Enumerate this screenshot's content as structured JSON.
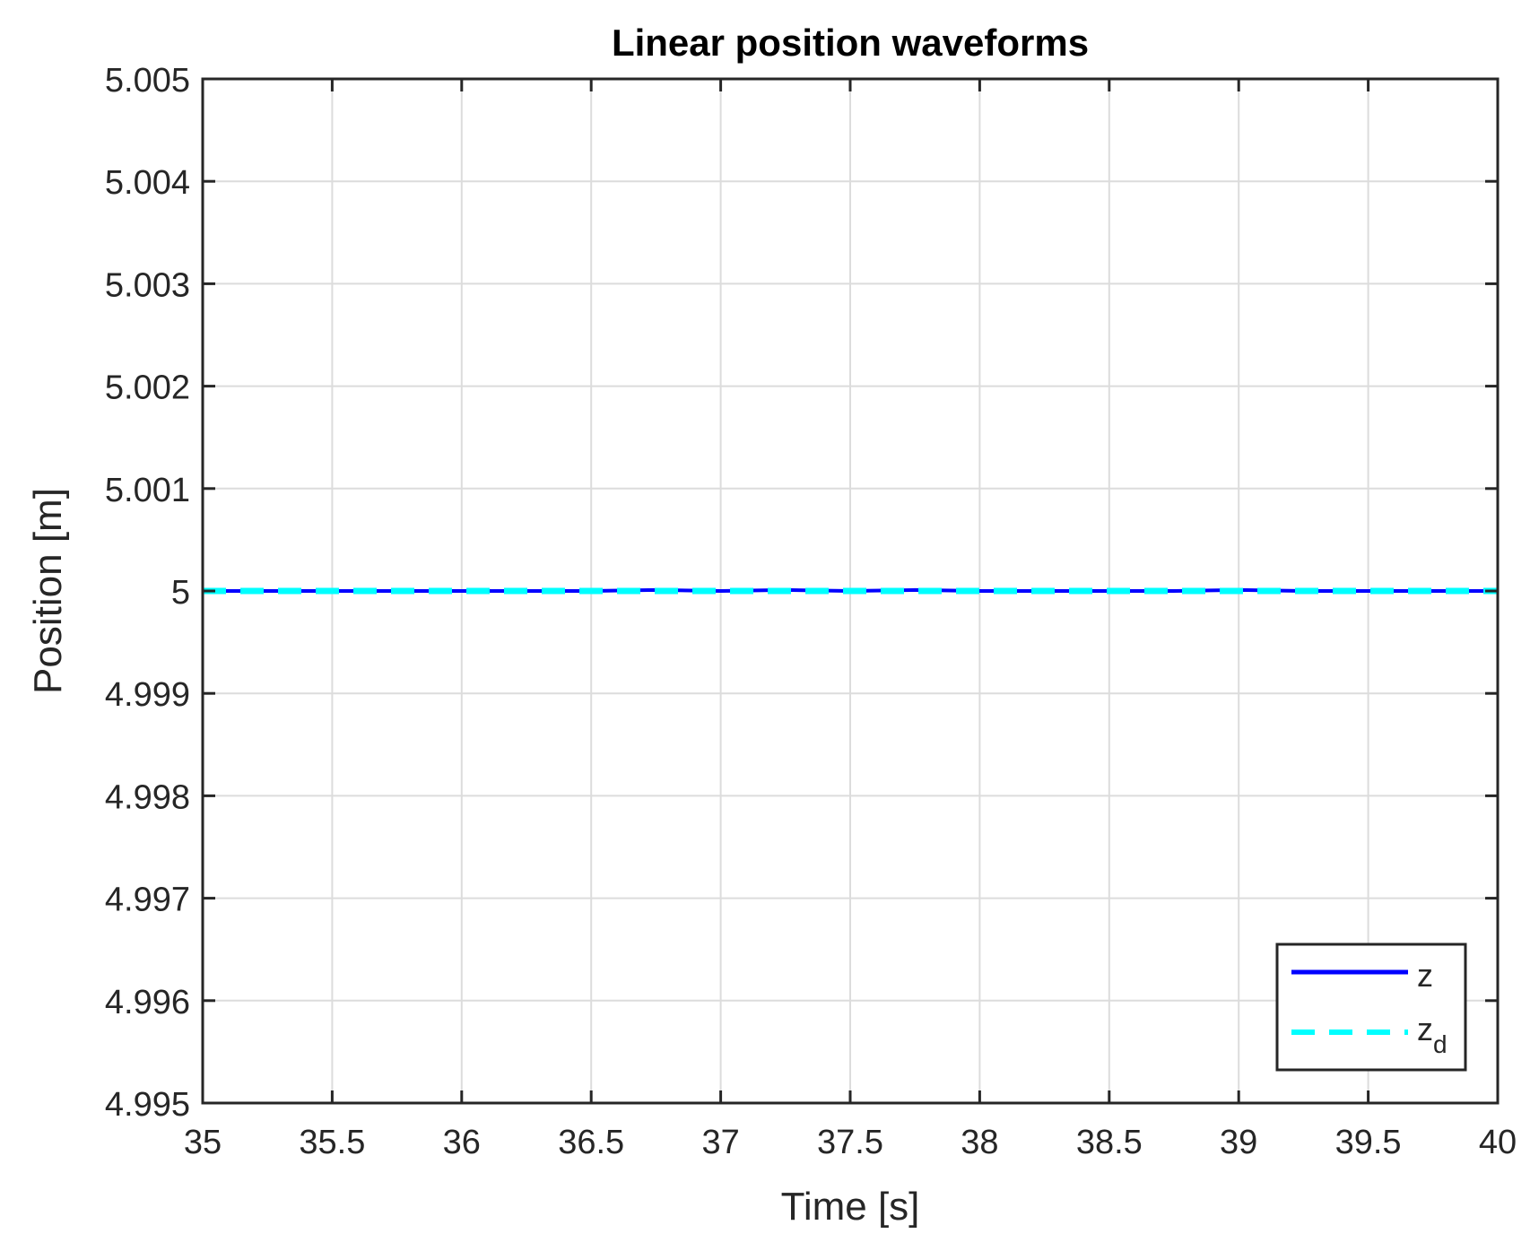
{
  "chart_data": {
    "type": "line",
    "title": "Linear position waveforms",
    "xlabel": "Time [s]",
    "ylabel": "Position [m]",
    "xlim": [
      35,
      40
    ],
    "ylim": [
      4.995,
      5.005
    ],
    "x_ticks": [
      35,
      35.5,
      36,
      36.5,
      37,
      37.5,
      38,
      38.5,
      39,
      39.5,
      40
    ],
    "x_tick_labels": [
      "35",
      "35.5",
      "36",
      "36.5",
      "37",
      "37.5",
      "38",
      "38.5",
      "39",
      "39.5",
      "40"
    ],
    "y_ticks": [
      4.995,
      4.996,
      4.997,
      4.998,
      4.999,
      5,
      5.001,
      5.002,
      5.003,
      5.004,
      5.005
    ],
    "y_tick_labels": [
      "4.995",
      "4.996",
      "4.997",
      "4.998",
      "4.999",
      "5",
      "5.001",
      "5.002",
      "5.003",
      "5.004",
      "5.005"
    ],
    "grid": true,
    "legend_position": "bottom-right",
    "series": [
      {
        "name": "z",
        "style": "solid",
        "color": "#0000FF",
        "x": [
          35,
          35.25,
          35.5,
          35.75,
          36,
          36.25,
          36.5,
          36.75,
          37,
          37.25,
          37.5,
          37.75,
          38,
          38.25,
          38.5,
          38.75,
          39,
          39.25,
          39.5,
          39.75,
          40
        ],
        "y": [
          5.0,
          5.0,
          5.0,
          5.0,
          5.0,
          5.0,
          5.0,
          5.00001,
          5.0,
          5.00001,
          5.0,
          5.00001,
          5.0,
          5.0,
          5.0,
          5.0,
          5.00001,
          5.0,
          5.0,
          5.0,
          5.0
        ]
      },
      {
        "name": "z_d",
        "legend_main": "z",
        "legend_sub": "d",
        "style": "dashed",
        "color": "#00FFFF",
        "x": [
          35,
          40
        ],
        "y": [
          5.0,
          5.0
        ]
      }
    ]
  }
}
